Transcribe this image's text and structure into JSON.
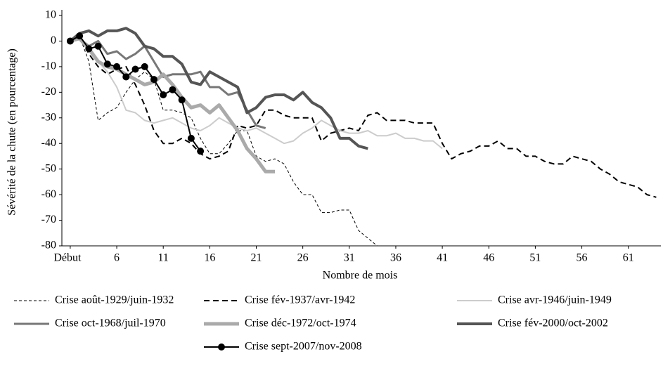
{
  "chart_data": {
    "type": "line",
    "y_label": "Sévérité de la chute (en pourcentage)",
    "x_label": "Nombre de mois",
    "x": [
      1,
      2,
      3,
      4,
      5,
      6,
      7,
      8,
      9,
      10,
      11,
      12,
      13,
      14,
      15,
      16,
      17,
      18,
      19,
      20,
      21,
      22,
      23,
      24,
      25,
      26,
      27,
      28,
      29,
      30,
      31,
      32,
      33,
      34,
      35,
      36,
      37,
      38,
      39,
      40,
      41,
      42,
      43,
      44,
      45,
      46,
      47,
      48,
      49,
      50,
      51,
      52,
      53,
      54,
      55,
      56,
      57,
      58,
      59,
      60,
      61,
      62,
      63,
      64
    ],
    "xlim": [
      0.1,
      64.5
    ],
    "xticks": [
      {
        "value": 1,
        "label": "Début"
      },
      6,
      11,
      16,
      21,
      26,
      31,
      36,
      41,
      46,
      51,
      56,
      61
    ],
    "ylim": [
      -80,
      10
    ],
    "yticks": [
      10,
      0,
      -10,
      -20,
      -30,
      -40,
      -50,
      -60,
      -70,
      -80
    ],
    "grid": false,
    "series": [
      {
        "name": "Crise août-1929/juin-1932",
        "color": "#000000",
        "line_width": 1,
        "dash": "4,3",
        "marker": false,
        "values": [
          0,
          2,
          -8,
          -31,
          -28,
          -26,
          -20,
          -15,
          -12,
          -15,
          -27,
          -27,
          -28,
          -30,
          -38,
          -44,
          -44,
          -40,
          -35,
          -35,
          -45,
          -47,
          -46,
          -48,
          -55,
          -60,
          -60,
          -67,
          -67,
          -66,
          -66,
          -74,
          -77,
          -80,
          null,
          null,
          null,
          null,
          null,
          null,
          null,
          null,
          null,
          null,
          null,
          null,
          null,
          null,
          null,
          null,
          null,
          null,
          null,
          null,
          null,
          null,
          null,
          null,
          null,
          null,
          null,
          null,
          null,
          null
        ]
      },
      {
        "name": "Crise fév-1937/avr-1942",
        "color": "#000000",
        "line_width": 2,
        "dash": "8,5",
        "marker": false,
        "values": [
          0,
          3,
          -5,
          -10,
          -13,
          -11,
          -10,
          -17,
          -25,
          -35,
          -40,
          -40,
          -38,
          -40,
          -44,
          -46,
          -45,
          -43,
          -33,
          -34,
          -33,
          -27,
          -27,
          -29,
          -30,
          -30,
          -30,
          -39,
          -36,
          -35,
          -34,
          -35,
          -29,
          -28,
          -31,
          -31,
          -31,
          -32,
          -32,
          -32,
          -40,
          -46,
          -44,
          -43,
          -41,
          -41,
          -39,
          -42,
          -42,
          -45,
          -45,
          -47,
          -48,
          -48,
          -45,
          -46,
          -47,
          -50,
          -52,
          -55,
          -56,
          -57,
          -60,
          -61
        ]
      },
      {
        "name": "Crise avr-1946/juin-1949",
        "color": "#cccccc",
        "line_width": 2,
        "dash": "none",
        "marker": false,
        "values": [
          0,
          1,
          -4,
          -8,
          -12,
          -18,
          -27,
          -28,
          -31,
          -32,
          -31,
          -30,
          -32,
          -34,
          -35,
          -33,
          -30,
          -32,
          -34,
          -35,
          -34,
          -36,
          -38,
          -40,
          -39,
          -36,
          -34,
          -31,
          -33,
          -35,
          -36,
          -36,
          -35,
          -37,
          -37,
          -36,
          -38,
          -38,
          -39,
          -39,
          -42,
          null,
          null,
          null,
          null,
          null,
          null,
          null,
          null,
          null,
          null,
          null,
          null,
          null,
          null,
          null,
          null,
          null,
          null,
          null,
          null,
          null,
          null,
          null
        ]
      },
      {
        "name": "Crise oct-1968/juil-1970",
        "color": "#777777",
        "line_width": 3,
        "dash": "none",
        "marker": false,
        "values": [
          0,
          1,
          -2,
          0,
          -5,
          -4,
          -7,
          -5,
          -2,
          -8,
          -14,
          -13,
          -13,
          -13,
          -12,
          -18,
          -18,
          -21,
          -20,
          -27,
          -33,
          -34,
          null,
          null,
          null,
          null,
          null,
          null,
          null,
          null,
          null,
          null,
          null,
          null,
          null,
          null,
          null,
          null,
          null,
          null,
          null,
          null,
          null,
          null,
          null,
          null,
          null,
          null,
          null,
          null,
          null,
          null,
          null,
          null,
          null,
          null,
          null,
          null,
          null,
          null,
          null,
          null,
          null,
          null
        ]
      },
      {
        "name": "Crise déc-1972/oct-1974",
        "color": "#aaaaaa",
        "line_width": 5,
        "dash": "none",
        "marker": false,
        "values": [
          0,
          1,
          -3,
          -8,
          -10,
          -11,
          -13,
          -15,
          -17,
          -16,
          -13,
          -17,
          -22,
          -26,
          -25,
          -28,
          -25,
          -30,
          -35,
          -42,
          -46,
          -51,
          -51,
          null,
          null,
          null,
          null,
          null,
          null,
          null,
          null,
          null,
          null,
          null,
          null,
          null,
          null,
          null,
          null,
          null,
          null,
          null,
          null,
          null,
          null,
          null,
          null,
          null,
          null,
          null,
          null,
          null,
          null,
          null,
          null,
          null,
          null,
          null,
          null,
          null,
          null,
          null,
          null,
          null
        ]
      },
      {
        "name": "Crise fév-2000/oct-2002",
        "color": "#555555",
        "line_width": 4,
        "dash": "none",
        "marker": false,
        "values": [
          0,
          3,
          4,
          2,
          4,
          4,
          5,
          3,
          -2,
          -3,
          -6,
          -6,
          -9,
          -16,
          -17,
          -12,
          -14,
          -16,
          -18,
          -28,
          -26,
          -22,
          -21,
          -21,
          -23,
          -20,
          -24,
          -26,
          -30,
          -38,
          -38,
          -41,
          -42,
          null,
          null,
          null,
          null,
          null,
          null,
          null,
          null,
          null,
          null,
          null,
          null,
          null,
          null,
          null,
          null,
          null,
          null,
          null,
          null,
          null,
          null,
          null,
          null,
          null,
          null,
          null,
          null,
          null,
          null,
          null
        ]
      },
      {
        "name": "Crise sept-2007/nov-2008",
        "color": "#000000",
        "line_width": 2,
        "dash": "none",
        "marker": true,
        "values": [
          0,
          2,
          -3,
          -2,
          -9,
          -10,
          -14,
          -11,
          -10,
          -15,
          -21,
          -19,
          -23,
          -38,
          -43,
          null,
          null,
          null,
          null,
          null,
          null,
          null,
          null,
          null,
          null,
          null,
          null,
          null,
          null,
          null,
          null,
          null,
          null,
          null,
          null,
          null,
          null,
          null,
          null,
          null,
          null,
          null,
          null,
          null,
          null,
          null,
          null,
          null,
          null,
          null,
          null,
          null,
          null,
          null,
          null,
          null,
          null,
          null,
          null,
          null,
          null,
          null,
          null,
          null
        ]
      }
    ]
  }
}
